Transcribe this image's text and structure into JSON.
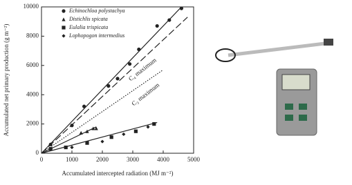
{
  "chart_data": {
    "type": "scatter",
    "xlabel": "Accumulated intercepted radiation (MJ m⁻²)",
    "ylabel": "Accumulated net primary production (g m⁻²)",
    "xlim": [
      0,
      5000
    ],
    "xticks": [
      0,
      1000,
      2000,
      3000,
      4000,
      5000
    ],
    "ylim": [
      0,
      10000
    ],
    "yticks": [
      0,
      2000,
      4000,
      6000,
      8000,
      10000
    ],
    "series": [
      {
        "name": "Echinochloa polystachya",
        "marker": "circle",
        "color": "#222222",
        "x": [
          300,
          1000,
          1400,
          2200,
          2500,
          2900,
          3200,
          3800,
          4200,
          4600
        ],
        "y": [
          600,
          1900,
          3200,
          4600,
          5100,
          6100,
          7100,
          8700,
          9100,
          9900
        ]
      },
      {
        "name": "Distichlis spicata",
        "marker": "triangle",
        "color": "#222222",
        "x": [
          1300,
          1500,
          1700,
          1800
        ],
        "y": [
          1400,
          1500,
          1700,
          1700
        ]
      },
      {
        "name": "Eulalia trispicata",
        "marker": "square",
        "color": "#222222",
        "x": [
          300,
          800,
          1500,
          2300,
          3100,
          3700
        ],
        "y": [
          300,
          400,
          700,
          1100,
          1500,
          2000
        ]
      },
      {
        "name": "Lophopogon intermedius",
        "marker": "diamond",
        "color": "#222222",
        "x": [
          1000,
          2000,
          2700,
          3500
        ],
        "y": [
          400,
          800,
          1300,
          1800
        ]
      }
    ],
    "lines": [
      {
        "x": [
          0,
          4600
        ],
        "y": [
          0,
          10000
        ],
        "style": "solid"
      },
      {
        "x": [
          0,
          1800
        ],
        "y": [
          0,
          1800
        ],
        "style": "solid"
      },
      {
        "x": [
          0,
          3800
        ],
        "y": [
          0,
          2100
        ],
        "style": "solid"
      },
      {
        "x": [
          0,
          4800
        ],
        "y": [
          0,
          9300
        ],
        "style": "dashed"
      },
      {
        "x": [
          0,
          4000
        ],
        "y": [
          0,
          5700
        ],
        "style": "dotted"
      }
    ],
    "annotations": [
      {
        "text": "C₄ maximum",
        "x": 2900,
        "y": 5000
      },
      {
        "text": "C₃ maximum",
        "x": 3000,
        "y": 3300
      }
    ]
  }
}
